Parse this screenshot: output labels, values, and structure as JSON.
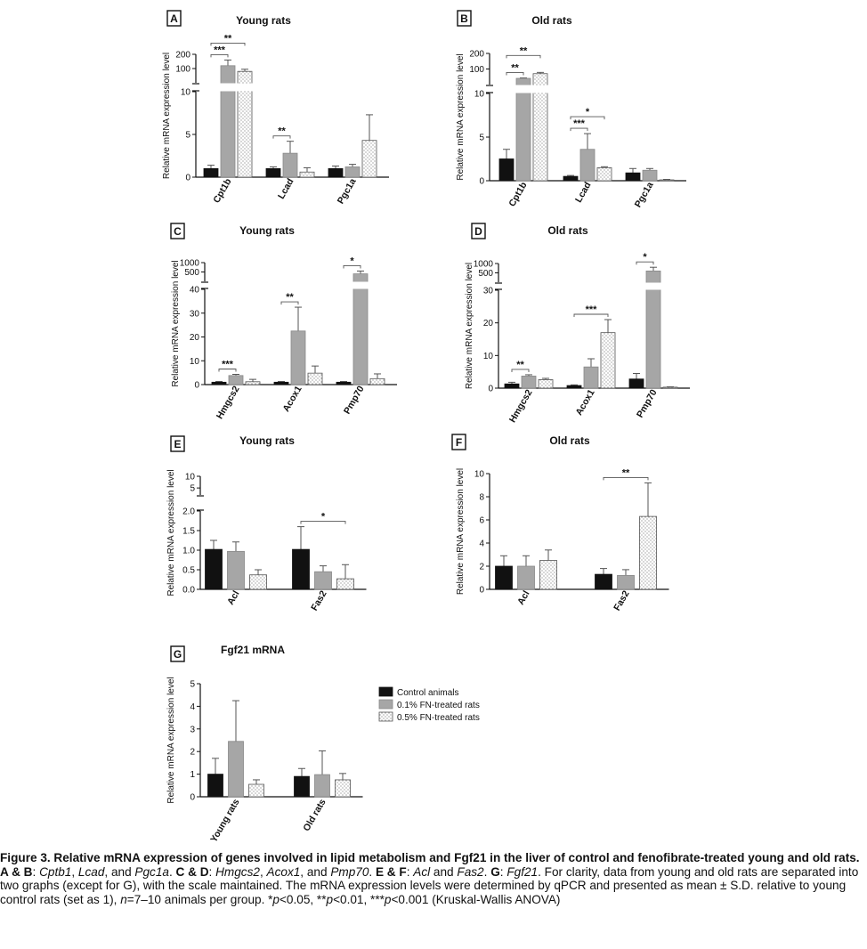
{
  "legend": {
    "items": [
      "Control animals",
      "0.1% FN-treated rats",
      "0.5% FN-treated rats"
    ],
    "colors": [
      "#111111",
      "#a6a6a6",
      "#ffffff"
    ]
  },
  "chart_data": [
    {
      "panel": "A",
      "title": "Young rats",
      "type": "bar",
      "ylabel": "Relative mRNA expression level",
      "categories": [
        "Cpt1b",
        "Lcad",
        "Pgc1a"
      ],
      "broken_axis": {
        "lower": [
          0,
          10
        ],
        "upper": [
          0,
          200
        ],
        "lower_ticks": [
          "0",
          "5",
          "10"
        ],
        "upper_ticks": [
          "100",
          "200"
        ]
      },
      "series": [
        {
          "name": "Control animals",
          "values": [
            1.0,
            1.0,
            1.0
          ],
          "errors": [
            0.4,
            0.2,
            0.3
          ]
        },
        {
          "name": "0.1% FN-treated rats",
          "values": [
            120,
            2.8,
            1.2
          ],
          "errors": [
            40,
            1.4,
            0.3
          ]
        },
        {
          "name": "0.5% FN-treated rats",
          "values": [
            80,
            0.6,
            4.3
          ],
          "errors": [
            15,
            0.5,
            3.0
          ]
        }
      ],
      "significance": [
        {
          "group": 0,
          "from": 0,
          "to": 1,
          "label": "***"
        },
        {
          "group": 0,
          "from": 0,
          "to": 2,
          "label": "**"
        },
        {
          "group": 1,
          "from": 0,
          "to": 1,
          "label": "**"
        }
      ]
    },
    {
      "panel": "B",
      "title": "Old rats",
      "type": "bar",
      "ylabel": "Relative mRNA expression level",
      "categories": [
        "Cpt1b",
        "Lcad",
        "Pgc1a"
      ],
      "broken_axis": {
        "lower": [
          0,
          10
        ],
        "upper": [
          0,
          200
        ],
        "lower_ticks": [
          "0",
          "5",
          "10"
        ],
        "upper_ticks": [
          "100",
          "200"
        ]
      },
      "series": [
        {
          "name": "Control animals",
          "values": [
            2.5,
            0.5,
            0.9
          ],
          "errors": [
            1.1,
            0.1,
            0.5
          ]
        },
        {
          "name": "0.1% FN-treated rats",
          "values": [
            40,
            3.6,
            1.2
          ],
          "errors": [
            3,
            1.8,
            0.2
          ]
        },
        {
          "name": "0.5% FN-treated rats",
          "values": [
            70,
            1.5,
            0.1
          ],
          "errors": [
            8,
            0.1,
            0.05
          ]
        }
      ],
      "significance": [
        {
          "group": 0,
          "from": 0,
          "to": 1,
          "label": "**"
        },
        {
          "group": 0,
          "from": 0,
          "to": 2,
          "label": "**"
        },
        {
          "group": 1,
          "from": 0,
          "to": 1,
          "label": "***"
        },
        {
          "group": 1,
          "from": 0,
          "to": 2,
          "label": "*"
        }
      ]
    },
    {
      "panel": "C",
      "title": "Young rats",
      "type": "bar",
      "ylabel": "Relative mRNA expression level",
      "categories": [
        "Hmgcs2",
        "Acox1",
        "Pmp70"
      ],
      "broken_axis": {
        "lower": [
          0,
          40
        ],
        "upper": [
          0,
          1000
        ],
        "lower_ticks": [
          "0",
          "10",
          "20",
          "30",
          "40"
        ],
        "upper_ticks": [
          "500",
          "1000"
        ]
      },
      "series": [
        {
          "name": "Control animals",
          "values": [
            1.0,
            1.0,
            1.0
          ],
          "errors": [
            0.3,
            0.3,
            0.3
          ]
        },
        {
          "name": "0.1% FN-treated rats",
          "values": [
            3.8,
            22.5,
            400
          ],
          "errors": [
            0.5,
            10,
            150
          ]
        },
        {
          "name": "0.5% FN-treated rats",
          "values": [
            1.2,
            4.8,
            2.5
          ],
          "errors": [
            1.0,
            3.0,
            2.0
          ]
        }
      ],
      "significance": [
        {
          "group": 0,
          "from": 0,
          "to": 1,
          "label": "***"
        },
        {
          "group": 1,
          "from": 0,
          "to": 1,
          "label": "**"
        },
        {
          "group": 2,
          "from": 0,
          "to": 1,
          "label": "*"
        }
      ]
    },
    {
      "panel": "D",
      "title": "Old rats",
      "type": "bar",
      "ylabel": "Relative mRNA expression level",
      "categories": [
        "Hmgcs2",
        "Acox1",
        "Pmp70"
      ],
      "broken_axis": {
        "lower": [
          0,
          30
        ],
        "upper": [
          0,
          1000
        ],
        "lower_ticks": [
          "0",
          "10",
          "20",
          "30"
        ],
        "upper_ticks": [
          "500",
          "1000"
        ]
      },
      "series": [
        {
          "name": "Control animals",
          "values": [
            1.3,
            0.8,
            2.8
          ],
          "errors": [
            0.5,
            0.2,
            1.7
          ]
        },
        {
          "name": "0.1% FN-treated rats",
          "values": [
            3.7,
            6.5,
            600
          ],
          "errors": [
            0.4,
            2.5,
            200
          ]
        },
        {
          "name": "0.5% FN-treated rats",
          "values": [
            2.6,
            17,
            0.3
          ],
          "errors": [
            0.4,
            4.0,
            0.1
          ]
        }
      ],
      "significance": [
        {
          "group": 0,
          "from": 0,
          "to": 1,
          "label": "**"
        },
        {
          "group": 1,
          "from": 0,
          "to": 2,
          "label": "***"
        },
        {
          "group": 2,
          "from": 0,
          "to": 1,
          "label": "*"
        }
      ]
    },
    {
      "panel": "E",
      "title": "Young rats",
      "type": "bar",
      "ylabel": "Relative mRNA expression level",
      "categories": [
        "Acl",
        "Fas2"
      ],
      "broken_axis": {
        "lower": [
          0,
          2.0
        ],
        "upper": [
          2,
          10
        ],
        "lower_ticks": [
          "0.0",
          "0.5",
          "1.0",
          "1.5",
          "2.0"
        ],
        "upper_ticks": [
          "5",
          "10"
        ]
      },
      "series": [
        {
          "name": "Control animals",
          "values": [
            1.02,
            1.02
          ],
          "errors": [
            0.23,
            0.58
          ]
        },
        {
          "name": "0.1% FN-treated rats",
          "values": [
            0.97,
            0.45
          ],
          "errors": [
            0.24,
            0.15
          ]
        },
        {
          "name": "0.5% FN-treated rats",
          "values": [
            0.37,
            0.27
          ],
          "errors": [
            0.13,
            0.36
          ]
        }
      ],
      "significance": [
        {
          "group": 1,
          "from": 0,
          "to": 2,
          "label": "*"
        }
      ]
    },
    {
      "panel": "F",
      "title": "Old rats",
      "type": "bar",
      "ylabel": "Relative mRNA expression level",
      "categories": [
        "Acl",
        "Fas2"
      ],
      "ylim": [
        0,
        10
      ],
      "yticks": [
        "0",
        "2",
        "4",
        "6",
        "8",
        "10"
      ],
      "series": [
        {
          "name": "Control animals",
          "values": [
            2.0,
            1.3
          ],
          "errors": [
            0.9,
            0.5
          ]
        },
        {
          "name": "0.1% FN-treated rats",
          "values": [
            2.0,
            1.2
          ],
          "errors": [
            0.9,
            0.5
          ]
        },
        {
          "name": "0.5% FN-treated rats",
          "values": [
            2.5,
            6.3
          ],
          "errors": [
            0.9,
            2.9
          ]
        }
      ],
      "significance": [
        {
          "group": 1,
          "from": 0,
          "to": 2,
          "label": "**"
        }
      ]
    },
    {
      "panel": "G",
      "title": "Fgf21 mRNA",
      "type": "bar",
      "ylabel": "Relative mRNA expression level",
      "categories": [
        "Young rats",
        "Old rats"
      ],
      "ylim": [
        0,
        5
      ],
      "yticks": [
        "0",
        "1",
        "2",
        "3",
        "4",
        "5"
      ],
      "series": [
        {
          "name": "Control animals",
          "values": [
            1.0,
            0.9
          ],
          "errors": [
            0.7,
            0.35
          ]
        },
        {
          "name": "0.1% FN-treated rats",
          "values": [
            2.45,
            0.98
          ],
          "errors": [
            1.8,
            1.05
          ]
        },
        {
          "name": "0.5% FN-treated rats",
          "values": [
            0.55,
            0.75
          ],
          "errors": [
            0.2,
            0.28
          ]
        }
      ],
      "significance": []
    }
  ],
  "caption": {
    "title": "Figure 3. Relative mRNA expression of genes involved in lipid metabolism and Fgf21 in the liver of control and fenofibrate-treated young and old rats.",
    "html": "<b>A &amp; B</b>: <i>Cptb1</i>, <i>Lcad</i>, and <i>Pgc1a</i>. <b>C &amp; D</b>: <i>Hmgcs2</i>, <i>Acox1</i>, and <i>Pmp70</i>. <b>E &amp; F</b>: <i>Acl</i> and <i>Fas2</i>. <b>G</b>: <i>Fgf21</i>. For clarity, data from young and old rats are separated into two graphs (except for G), with the scale maintained. The mRNA expression levels were determined by qPCR and presented as mean ± S.D. relative to young control rats (set as 1), <i>n</i>=7–10 animals per group. *<i>p</i>&lt;0.05, **<i>p</i>&lt;0.01, ***<i>p</i>&lt;0.001 (Kruskal-Wallis ANOVA)"
  }
}
